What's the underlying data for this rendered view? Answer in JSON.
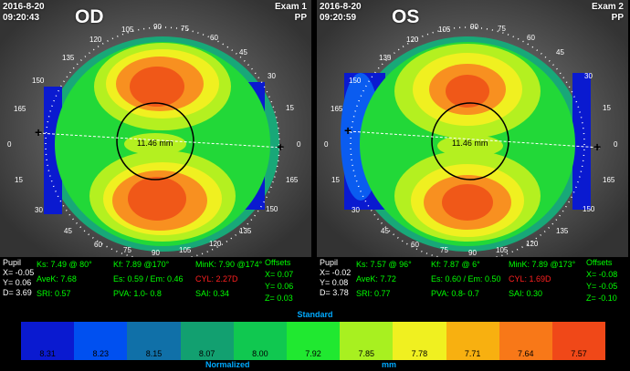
{
  "od": {
    "date": "2016-8-20",
    "time": "09:20:43",
    "eye": "OD",
    "exam": "Exam 1",
    "pp": "PP",
    "zone_label": "11.46 mm",
    "ticks": {
      "t0l": "0",
      "t15": "15",
      "t30": "30",
      "t45": "45",
      "t60": "60",
      "t75": "75",
      "t90b": "90",
      "t105b": "105",
      "t120b": "120",
      "t135b": "135",
      "t150b": "150",
      "t165b": "165",
      "t0r": "0",
      "t15r": "15",
      "t30r": "30",
      "t45r": "45",
      "t60r": "60",
      "t75t": "75",
      "t90t": "90",
      "t105t": "105",
      "t120t": "120",
      "t135t": "135",
      "t150t": "150",
      "t165t": "165"
    },
    "pupil": "Pupil",
    "x": "X= -0.05",
    "y": "Y= 0.06",
    "d": "D= 3.69",
    "ks": "Ks: 7.49 @ 80°",
    "avek": "AveK: 7.68",
    "sri": "SRI: 0.57",
    "kf": "Kf: 7.89 @170°",
    "es": "Es: 0.59 / Em: 0.46",
    "pva": "PVA:  1.0- 0.8",
    "mink": "MinK: 7.90 @174°",
    "cyl": "CYL:  2.27D",
    "sai": "SAI: 0.34",
    "offsets": "Offsets",
    "ox": "X= 0.07",
    "oy": "Y= 0.06",
    "oz": "Z= 0.03"
  },
  "os": {
    "date": "2016-8-20",
    "time": "09:20:59",
    "eye": "OS",
    "exam": "Exam 2",
    "pp": "PP",
    "zone_label": "11.46 mm",
    "ticks": {
      "t0l": "0",
      "t15": "15",
      "t30": "30",
      "t45": "45",
      "t60": "60",
      "t75": "75",
      "t90b": "90",
      "t105b": "105",
      "t120b": "120",
      "t135b": "135",
      "t150b": "150",
      "t165b": "165",
      "t0r": "0",
      "t15r": "15",
      "t30r": "30",
      "t45r": "45",
      "t60r": "60",
      "t75t": "75",
      "t90t": "90",
      "t105t": "105",
      "t120t": "120",
      "t135t": "135",
      "t150t": "150",
      "t165t": "165"
    },
    "pupil": "Pupil",
    "x": "X= -0.02",
    "y": "Y= 0.08",
    "d": "D= 3.78",
    "ks": "Ks: 7.57 @ 96°",
    "avek": "AveK: 7.72",
    "sri": "SRI: 0.77",
    "kf": "Kf: 7.87 @  6°",
    "es": "Es: 0.60 / Em: 0.50",
    "pva": "PVA:  0.8- 0.7",
    "mink": "MinK: 7.89 @173°",
    "cyl": "CYL:  1.69D",
    "sai": "SAI: 0.30",
    "offsets": "Offsets",
    "ox": "X= -0.08",
    "oy": "Y= -0.05",
    "oz": "Z= -0.10"
  },
  "scale": {
    "title": "Standard",
    "footer_left": "Normalized",
    "footer_units": "mm",
    "values": [
      "8.31",
      "8.23",
      "8.15",
      "8.07",
      "8.00",
      "7.92",
      "7.85",
      "7.78",
      "7.71",
      "7.64",
      "7.57"
    ],
    "colors": [
      "#0a1ad0",
      "#0050f0",
      "#1070a8",
      "#12a070",
      "#10c850",
      "#20e830",
      "#a8f020",
      "#f0f020",
      "#f8b010",
      "#f87818",
      "#f04818"
    ]
  },
  "map_colors": {
    "blue": "#0a1ad0",
    "lightblue": "#0a5cf0",
    "teal": "#18a878",
    "green": "#22d838",
    "lime": "#b4f020",
    "yellow": "#f0f020",
    "orange": "#f89020",
    "red": "#f05818"
  }
}
